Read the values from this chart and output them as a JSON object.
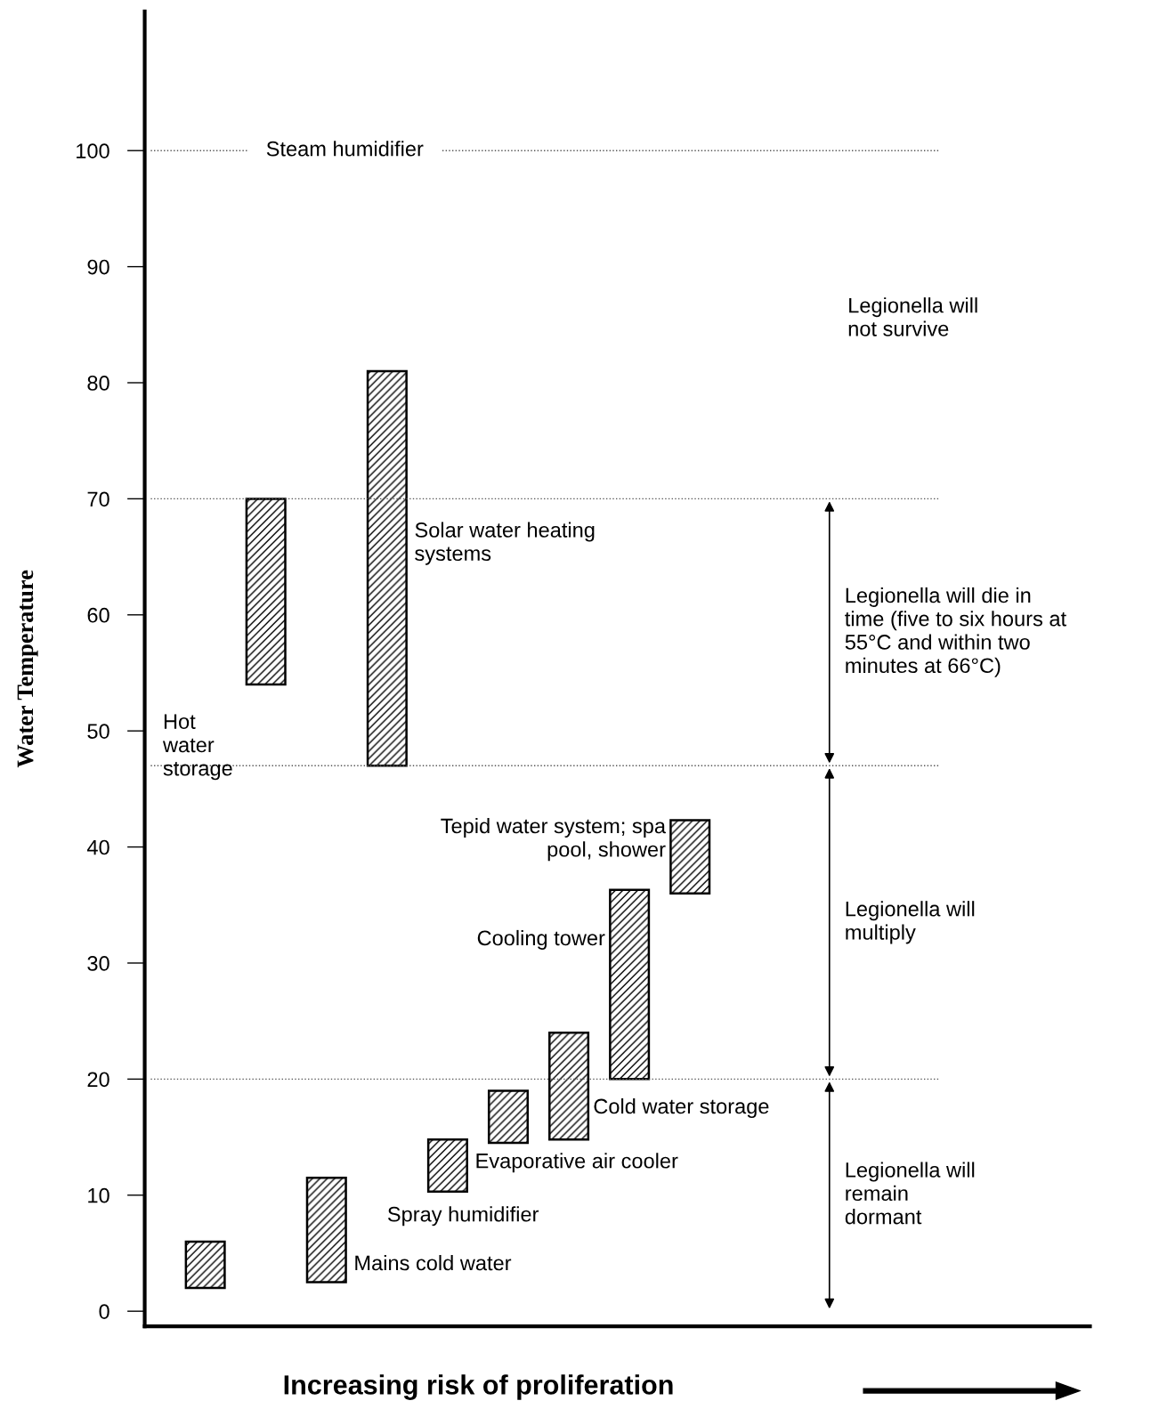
{
  "chart_data": {
    "type": "bar",
    "xlabel": "Increasing risk of proliferation",
    "ylabel": "Water Temperature",
    "categories": [
      null,
      null,
      null,
      null,
      null,
      null,
      null,
      null,
      null
    ],
    "series": [
      {
        "color": "#000000",
        "base": [
          2,
          54,
          2.5,
          47,
          10.3,
          14.5,
          14.8,
          20,
          36
        ],
        "values": [
          4,
          16,
          9,
          34,
          4.5,
          4.5,
          9.2,
          16.3,
          6.3
        ]
      }
    ],
    "ylim": [
      -1.3,
      112
    ],
    "yticks": [
      0,
      10,
      20,
      30,
      40,
      50,
      60,
      70,
      80,
      90,
      100
    ],
    "tick_labels": "y",
    "ref_lines": [
      {
        "axis": "y",
        "value": 100,
        "label": "Steam humidifier",
        "line_style": "dotted"
      },
      {
        "axis": "y",
        "value": 70,
        "line_style": "dotted"
      },
      {
        "axis": "y",
        "value": 47,
        "line_style": "dotted"
      },
      {
        "axis": "y",
        "value": 20,
        "line_style": "dotted"
      }
    ],
    "annotations": [
      "Mains cold water",
      "Hot\nwater\nstorage",
      "Solar water heating\nsystems",
      "Spray humidifier",
      "Evaporative air cooler",
      "Cold water storage",
      "Cooling tower",
      "Tepid water system; spa\npool, shower",
      "Legionella will\nnot survive",
      "Legionella will die in\ntime (five to six hours at\n55°C and within two\nminutes at 66°C)",
      "Legionella will\nmultiply",
      "Legionella will\nremain\ndormant"
    ]
  }
}
